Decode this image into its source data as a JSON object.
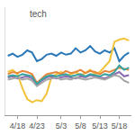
{
  "chart_data": {
    "type": "line",
    "annotations": [
      {
        "text": "tech"
      }
    ],
    "categories": [
      null,
      null,
      "4/18",
      null,
      null,
      null,
      "4/23",
      null,
      null,
      null,
      null,
      "5/3",
      null,
      null,
      null,
      "5/8",
      null,
      null,
      null,
      "5/13",
      null,
      null,
      null,
      "5/18",
      null,
      null
    ],
    "series": [
      {
        "color": "#2a78b8",
        "values": [
          55,
          57,
          54,
          56,
          60,
          58,
          50,
          52,
          56,
          57,
          55,
          58,
          56,
          57,
          62,
          58,
          60,
          64,
          59,
          57,
          60,
          58,
          62,
          50,
          55,
          58
        ]
      },
      {
        "color": "#f2c23a",
        "values": [
          40,
          42,
          38,
          25,
          15,
          12,
          14,
          13,
          20,
          35,
          38,
          40,
          36,
          38,
          40,
          37,
          39,
          42,
          38,
          40,
          45,
          50,
          68,
          70,
          71,
          69
        ]
      },
      {
        "color": "#e8873a",
        "values": [
          38,
          40,
          39,
          41,
          40,
          38,
          30,
          34,
          38,
          39,
          40,
          38,
          41,
          39,
          40,
          42,
          39,
          41,
          40,
          38,
          41,
          40,
          42,
          44,
          43,
          42
        ]
      },
      {
        "color": "#8c6bb1",
        "values": [
          35,
          36,
          34,
          35,
          36,
          34,
          28,
          32,
          35,
          36,
          34,
          35,
          36,
          35,
          34,
          36,
          35,
          37,
          36,
          35,
          34,
          36,
          38,
          40,
          36,
          37
        ]
      },
      {
        "color": "#a6a6a6",
        "values": [
          33,
          34,
          35,
          33,
          34,
          32,
          27,
          30,
          33,
          34,
          35,
          33,
          34,
          33,
          35,
          34,
          33,
          34,
          35,
          34,
          33,
          35,
          37,
          36,
          32,
          30
        ]
      },
      {
        "color": "#3aa3a0",
        "values": [
          36,
          37,
          36,
          38,
          37,
          36,
          29,
          33,
          36,
          37,
          36,
          37,
          38,
          36,
          37,
          38,
          36,
          38,
          37,
          36,
          38,
          37,
          40,
          46,
          42,
          44
        ]
      }
    ],
    "ylim": [
      0,
      100
    ],
    "tick_labels": "x",
    "grid": false
  }
}
